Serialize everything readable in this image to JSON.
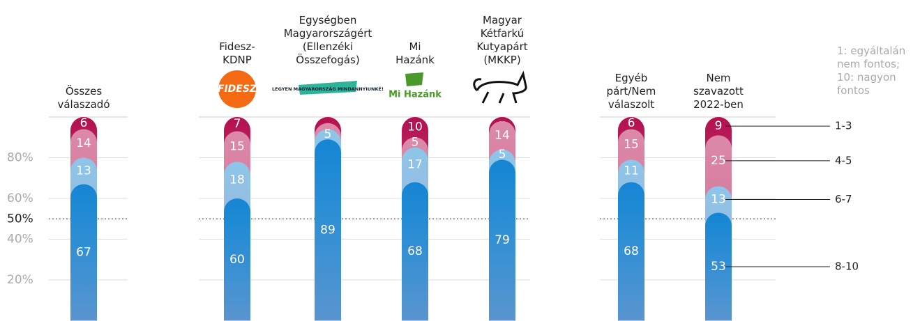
{
  "chart_data": {
    "type": "stacked_bar",
    "categories": [
      "Összes\nválaszadó",
      "Fidesz-\nKDNP",
      "Egységben\nMagyarországért\n(Ellenzéki\nÖsszefogás)",
      "Mi\nHazánk",
      "Magyar\nKétfarkú\nKutyapárt\n(MKKP)",
      "Egyéb\npárt/Nem\nválaszolt",
      "Nem\nszavazott\n2022-ben"
    ],
    "logos": [
      null,
      "FIDESZ",
      "LEGYEN MAGYARORSZÁG MINDANNYIUNKÉ!",
      "Mi Hazánk",
      null,
      null,
      null
    ],
    "legend_title": "1: egyáltalán\nnem fontos;\n10: nagyon\nfontos",
    "series": [
      {
        "name": "8-10",
        "color": "#1585d3",
        "values": [
          67,
          60,
          89,
          68,
          79,
          68,
          53
        ]
      },
      {
        "name": "6-7",
        "color": "#8cc6ea",
        "values": [
          13,
          18,
          5,
          17,
          5,
          11,
          13
        ],
        "value_labels": [
          "13",
          "18",
          "5",
          "17",
          "5",
          "11",
          "13"
        ]
      },
      {
        "name": "4-5",
        "color": "#dc8aa9",
        "values": [
          14,
          15,
          3,
          5,
          14,
          15,
          25
        ],
        "value_labels": [
          "14",
          "15",
          null,
          "5",
          "14",
          "15",
          "25"
        ]
      },
      {
        "name": "1-3",
        "color": "#b3104f",
        "values": [
          6,
          7,
          3,
          10,
          2,
          6,
          9
        ],
        "value_labels": [
          "6",
          "7",
          null,
          "10",
          null,
          "6",
          "9"
        ]
      }
    ],
    "ylim": [
      0,
      100
    ],
    "yticks": [
      {
        "value": 20,
        "label": "20%"
      },
      {
        "value": 40,
        "label": "40%"
      },
      {
        "value": 60,
        "label": "60%"
      },
      {
        "value": 80,
        "label": "80%"
      }
    ],
    "reference_line": {
      "value": 50,
      "label": "50%"
    },
    "grid": true
  }
}
